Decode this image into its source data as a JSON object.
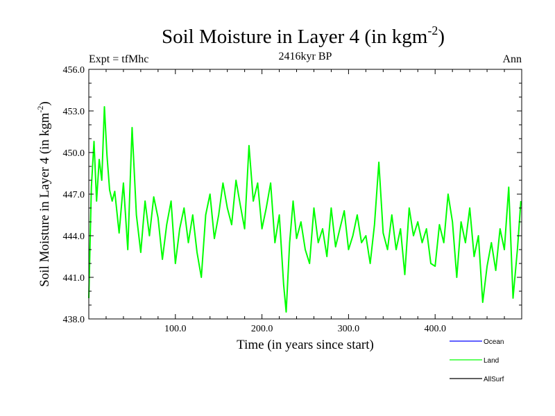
{
  "chart_data": {
    "type": "line",
    "title": "Soil Moisture in Layer 4 (in kgm",
    "title_sup": "-2",
    "title_close": ")",
    "subtitle_left": "Expt = tfMhc",
    "subtitle_center": "2416kyr BP",
    "subtitle_right": "Ann",
    "xlabel": "Time (in years since start)",
    "ylabel": "Soil Moisture in Layer 4 (in kgm",
    "ylabel_sup": "-2",
    "ylabel_close": ")",
    "xlim": [
      0,
      500
    ],
    "ylim": [
      438,
      456
    ],
    "xticks": [
      {
        "value": 100,
        "label": "100.0"
      },
      {
        "value": 200,
        "label": "200.0"
      },
      {
        "value": 300,
        "label": "300.0"
      },
      {
        "value": 400,
        "label": "400.0"
      }
    ],
    "yticks": [
      {
        "value": 438,
        "label": "438.0"
      },
      {
        "value": 441,
        "label": "441.0"
      },
      {
        "value": 444,
        "label": "444.0"
      },
      {
        "value": 447,
        "label": "447.0"
      },
      {
        "value": 450,
        "label": "450.0"
      },
      {
        "value": 453,
        "label": "453.0"
      },
      {
        "value": 456,
        "label": "456.0"
      }
    ],
    "legend": [
      {
        "name": "Ocean",
        "color": "#0000ff"
      },
      {
        "name": "Land",
        "color": "#00ff00"
      },
      {
        "name": "AllSurf",
        "color": "#000000"
      }
    ],
    "series": [
      {
        "name": "Land",
        "color": "#00ff00",
        "x": [
          0,
          3,
          6,
          9,
          12,
          15,
          18,
          21,
          24,
          27,
          30,
          35,
          40,
          45,
          50,
          55,
          60,
          65,
          70,
          75,
          80,
          85,
          90,
          95,
          100,
          105,
          110,
          115,
          120,
          125,
          130,
          135,
          140,
          145,
          150,
          155,
          160,
          165,
          170,
          175,
          180,
          185,
          190,
          195,
          200,
          205,
          210,
          215,
          220,
          225,
          228,
          232,
          236,
          240,
          245,
          250,
          255,
          260,
          265,
          270,
          275,
          280,
          285,
          290,
          295,
          300,
          305,
          310,
          315,
          320,
          325,
          330,
          335,
          340,
          345,
          350,
          355,
          360,
          365,
          370,
          375,
          380,
          385,
          390,
          395,
          400,
          405,
          410,
          415,
          420,
          425,
          430,
          435,
          440,
          445,
          450,
          455,
          460,
          465,
          470,
          475,
          480,
          485,
          490,
          495,
          499
        ],
        "values": [
          439.5,
          447.5,
          450.8,
          446.5,
          449.5,
          448.0,
          453.3,
          449.8,
          447.3,
          446.5,
          447.2,
          444.2,
          447.8,
          443.0,
          451.8,
          445.5,
          442.8,
          446.5,
          444.0,
          446.8,
          445.3,
          442.3,
          444.8,
          446.5,
          442.0,
          444.5,
          446.0,
          443.5,
          445.5,
          442.8,
          441.0,
          445.5,
          447.0,
          443.8,
          445.5,
          447.8,
          446.0,
          444.8,
          448.0,
          446.2,
          444.5,
          450.5,
          446.5,
          447.8,
          444.5,
          446.0,
          447.8,
          443.5,
          445.5,
          440.5,
          438.5,
          443.5,
          446.5,
          443.8,
          445.0,
          443.0,
          442.0,
          446.0,
          443.5,
          444.5,
          442.5,
          446.0,
          443.2,
          444.5,
          445.8,
          443.0,
          444.0,
          445.5,
          443.5,
          444.0,
          442.0,
          444.8,
          449.3,
          444.2,
          443.0,
          445.5,
          443.0,
          444.5,
          441.2,
          446.0,
          444.0,
          445.0,
          443.5,
          444.5,
          442.0,
          441.8,
          444.8,
          443.5,
          447.0,
          445.0,
          441.0,
          445.0,
          443.5,
          446.0,
          442.5,
          444.0,
          439.2,
          441.8,
          443.5,
          441.5,
          444.5,
          443.0,
          447.5,
          439.5,
          443.0,
          446.5
        ]
      }
    ]
  }
}
